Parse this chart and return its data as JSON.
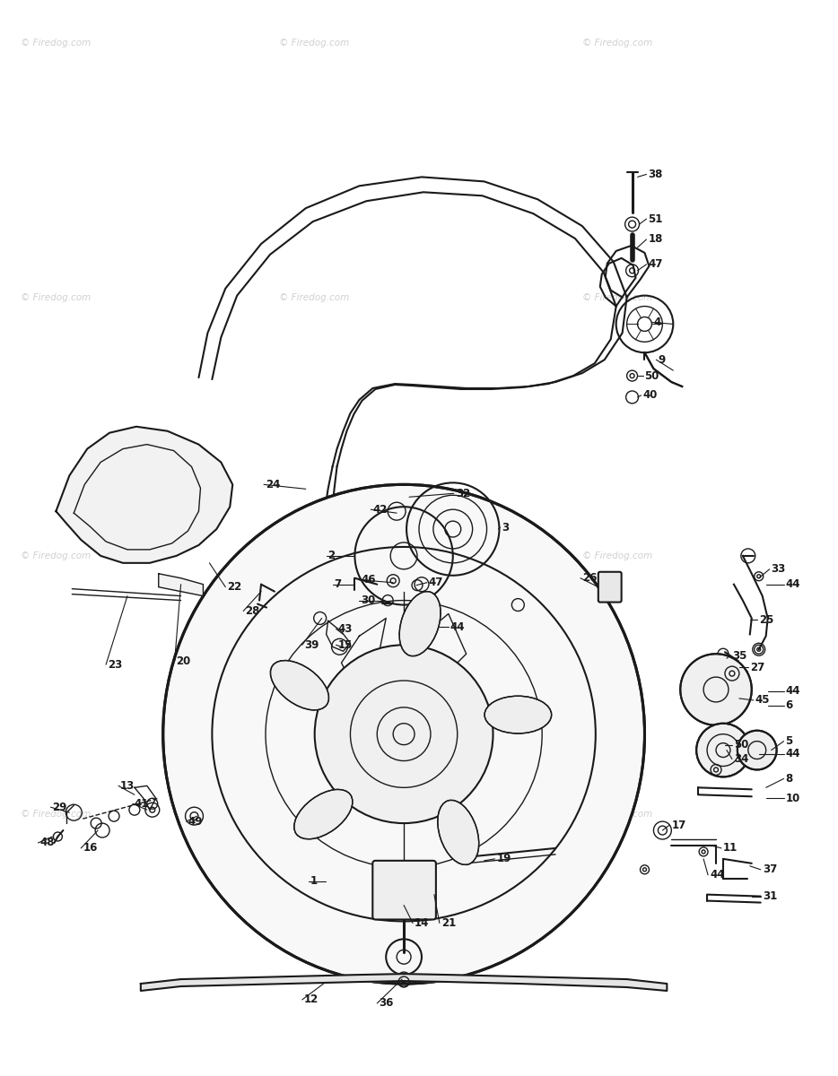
{
  "bg": "#ffffff",
  "wm_color": "#d0d0d0",
  "lc": "#1a1a1a",
  "label_fs": 8.5,
  "wm_text": "© Firedog.com"
}
